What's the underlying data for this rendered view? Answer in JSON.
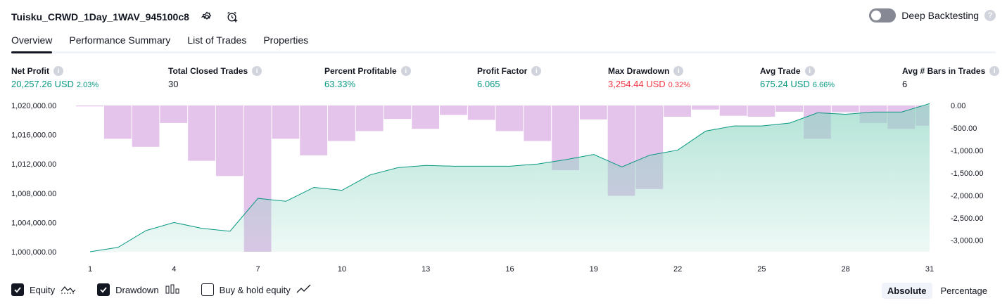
{
  "header": {
    "title": "Tuisku_CRWD_1Day_1WAV_945100c8",
    "icons": [
      "settings-icon",
      "alarm-add-icon"
    ]
  },
  "deep_backtesting": {
    "label": "Deep Backtesting",
    "enabled": false,
    "help": "?"
  },
  "tabs": [
    {
      "label": "Overview",
      "active": true
    },
    {
      "label": "Performance Summary",
      "active": false
    },
    {
      "label": "List of Trades",
      "active": false
    },
    {
      "label": "Properties",
      "active": false
    }
  ],
  "metrics": [
    {
      "label": "Net Profit",
      "value": "20,257.26 USD",
      "sub": "2.03%",
      "color": "#089981"
    },
    {
      "label": "Total Closed Trades",
      "value": "30",
      "sub": "",
      "color": "#131722"
    },
    {
      "label": "Percent Profitable",
      "value": "63.33%",
      "sub": "",
      "color": "#089981"
    },
    {
      "label": "Profit Factor",
      "value": "6.065",
      "sub": "",
      "color": "#089981"
    },
    {
      "label": "Max Drawdown",
      "value": "3,254.44 USD",
      "sub": "0.32%",
      "color": "#f23645"
    },
    {
      "label": "Avg Trade",
      "value": "675.24 USD",
      "sub": "6.66%",
      "color": "#089981"
    },
    {
      "label": "Avg # Bars in Trades",
      "value": "6",
      "sub": "",
      "color": "#131722"
    }
  ],
  "info_glyph": "i",
  "chart_data": {
    "type": "area",
    "x_ticks": [
      "1",
      "4",
      "7",
      "10",
      "13",
      "16",
      "19",
      "22",
      "25",
      "28",
      "31"
    ],
    "y_left_ticks": [
      "1,020,000.00",
      "1,016,000.00",
      "1,012,000.00",
      "1,008,000.00",
      "1,004,000.00",
      "1,000,000.00"
    ],
    "y_right_ticks": [
      "0.00",
      "-500.00",
      "-1,000.00",
      "-1,500.00",
      "-2,000.00",
      "-2,500.00",
      "-3,000.00"
    ],
    "y_left_range": [
      1000000,
      1020000
    ],
    "y_right_range": [
      -3254.44,
      0
    ],
    "x_range": [
      1,
      31
    ],
    "series": [
      {
        "name": "Equity",
        "color": "#089981",
        "x": [
          1,
          2,
          3,
          4,
          5,
          6,
          7,
          8,
          9,
          10,
          11,
          12,
          13,
          14,
          15,
          16,
          17,
          18,
          19,
          20,
          21,
          22,
          23,
          24,
          25,
          26,
          27,
          28,
          29,
          30,
          31
        ],
        "values": [
          1000000,
          1000600,
          1002900,
          1004000,
          1003200,
          1002800,
          1007300,
          1006900,
          1008800,
          1008400,
          1010500,
          1011500,
          1011800,
          1011700,
          1011700,
          1011700,
          1012000,
          1012600,
          1013300,
          1011600,
          1013200,
          1013900,
          1016500,
          1017200,
          1017200,
          1017600,
          1019000,
          1018800,
          1019100,
          1019100,
          1020257.26
        ]
      },
      {
        "name": "Drawdown",
        "color": "#ce93d8",
        "x": [
          1,
          2,
          3,
          4,
          5,
          6,
          7,
          8,
          9,
          10,
          11,
          12,
          13,
          14,
          15,
          16,
          17,
          18,
          19,
          20,
          21,
          22,
          23,
          24,
          25,
          26,
          27,
          28,
          29,
          30,
          31
        ],
        "values": [
          -20,
          -740,
          -920,
          -390,
          -1230,
          -1570,
          -3254.44,
          -740,
          -1110,
          -790,
          -570,
          -300,
          -520,
          -210,
          -320,
          -570,
          -790,
          -1440,
          -310,
          -2010,
          -1860,
          -250,
          -90,
          -230,
          -250,
          -140,
          -740,
          -150,
          -390,
          -520,
          -450
        ]
      }
    ],
    "legend_items": [
      {
        "label": "Equity",
        "checked": true,
        "icon": "equity-icon"
      },
      {
        "label": "Drawdown",
        "checked": true,
        "icon": "drawdown-icon"
      },
      {
        "label": "Buy & hold equity",
        "checked": false,
        "icon": "buy-hold-icon"
      }
    ]
  },
  "modes": [
    {
      "label": "Absolute",
      "active": true
    },
    {
      "label": "Percentage",
      "active": false
    }
  ]
}
